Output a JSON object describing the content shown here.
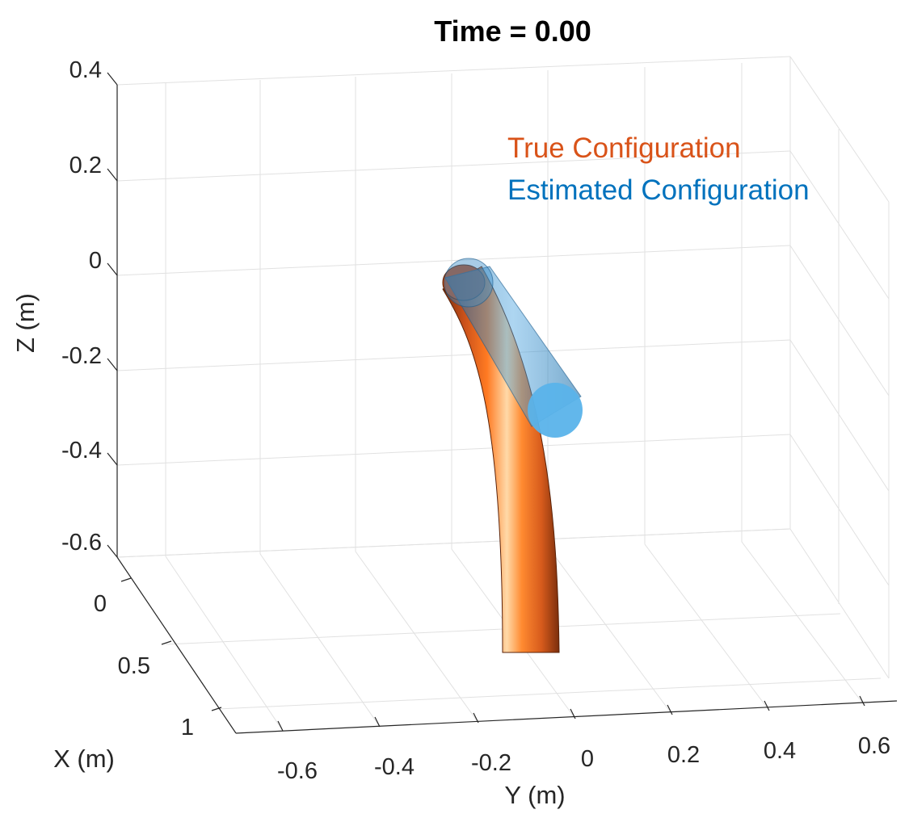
{
  "chart_data": {
    "type": "line",
    "title": "Time = 0.00",
    "xlabel": "X (m)",
    "ylabel": "Y (m)",
    "zlabel": "Z (m)",
    "xlim": [
      0,
      1.1
    ],
    "ylim": [
      -0.7,
      0.7
    ],
    "zlim": [
      -0.65,
      0.4
    ],
    "x_ticks": [
      0,
      0.5,
      1
    ],
    "y_ticks": [
      -0.6,
      -0.4,
      -0.2,
      0,
      0.2,
      0.4,
      0.6
    ],
    "z_ticks": [
      0.4,
      0.2,
      0,
      -0.2,
      -0.4,
      -0.6
    ],
    "x_tick_labels": [
      "0",
      "0.5",
      "1"
    ],
    "y_tick_labels": [
      "-0.6",
      "-0.4",
      "-0.2",
      "0",
      "0.2",
      "0.4",
      "0.6"
    ],
    "z_tick_labels": [
      "0.4",
      "0.2",
      "0",
      "-0.2",
      "-0.4",
      "-0.6"
    ],
    "grid": true,
    "legend_position": "top-right",
    "series": [
      {
        "name": "True Configuration",
        "color": "#D95319"
      },
      {
        "name": "Estimated Configuration",
        "color": "#0072BD"
      }
    ]
  }
}
